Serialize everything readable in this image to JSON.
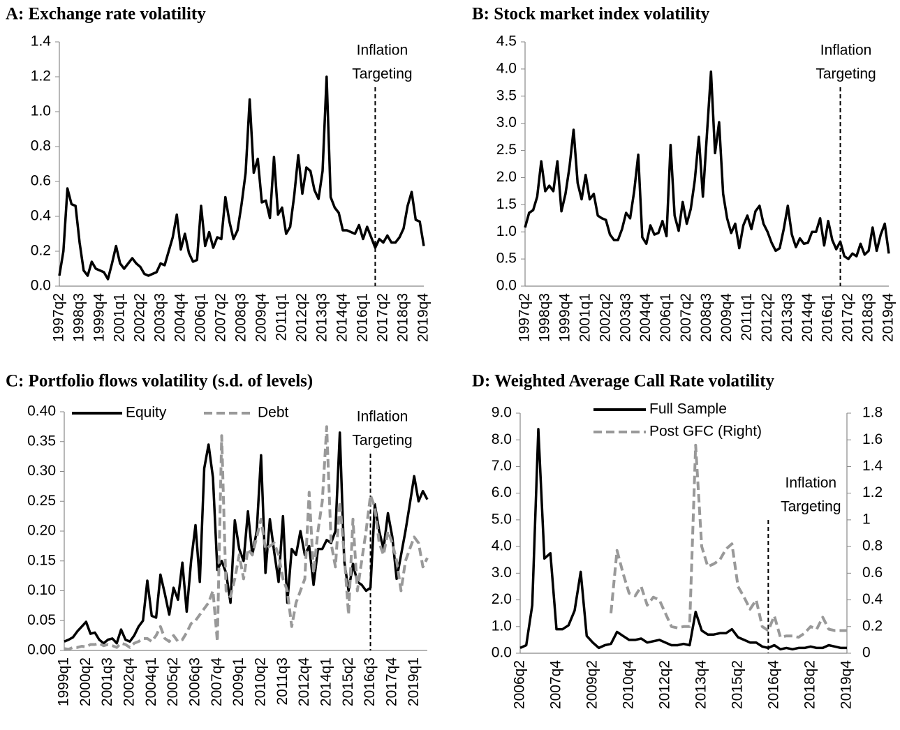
{
  "chart_data": [
    {
      "type": "line",
      "title": "A: Exchange rate volatility",
      "categories": [
        "1997q2",
        null,
        null,
        null,
        null,
        "1998q3",
        null,
        null,
        null,
        null,
        "1999q4",
        null,
        null,
        null,
        null,
        "2001q1",
        null,
        null,
        null,
        null,
        "2002q2",
        null,
        null,
        null,
        null,
        "2003q3",
        null,
        null,
        null,
        null,
        "2004q4",
        null,
        null,
        null,
        null,
        "2006q1",
        null,
        null,
        null,
        null,
        "2007q2",
        null,
        null,
        null,
        null,
        "2008q3",
        null,
        null,
        null,
        null,
        "2009q4",
        null,
        null,
        null,
        null,
        "2011q1",
        null,
        null,
        null,
        null,
        "2012q2",
        null,
        null,
        null,
        null,
        "2013q3",
        null,
        null,
        null,
        null,
        "2014q4",
        null,
        null,
        null,
        null,
        "2016q1",
        null,
        null,
        null,
        null,
        "2017q2",
        null,
        null,
        null,
        null,
        "2018q3",
        null,
        null,
        null,
        null,
        "2019q4"
      ],
      "values": [
        0.06,
        0.2,
        0.56,
        0.47,
        0.46,
        0.25,
        0.09,
        0.06,
        0.14,
        0.1,
        0.09,
        0.08,
        0.04,
        0.13,
        0.23,
        0.13,
        0.1,
        0.13,
        0.16,
        0.13,
        0.11,
        0.07,
        0.06,
        0.07,
        0.08,
        0.13,
        0.12,
        0.2,
        0.28,
        0.41,
        0.21,
        0.3,
        0.19,
        0.14,
        0.15,
        0.46,
        0.23,
        0.31,
        0.22,
        0.28,
        0.27,
        0.51,
        0.37,
        0.27,
        0.32,
        0.47,
        0.65,
        1.07,
        0.65,
        0.73,
        0.48,
        0.49,
        0.39,
        0.74,
        0.41,
        0.45,
        0.3,
        0.34,
        0.52,
        0.75,
        0.53,
        0.68,
        0.66,
        0.55,
        0.5,
        0.66,
        1.2,
        0.51,
        0.45,
        0.42,
        0.32,
        0.32,
        0.31,
        0.3,
        0.35,
        0.27,
        0.34,
        0.28,
        0.22,
        0.27,
        0.25,
        0.29,
        0.25,
        0.25,
        0.28,
        0.33,
        0.46,
        0.54,
        0.38,
        0.37,
        0.23
      ],
      "color": "#000000",
      "ylim": [
        0,
        1.4
      ],
      "yticks": [
        {
          "value": 0,
          "label": "0.0"
        },
        0.2,
        0.4,
        0.6,
        0.8,
        {
          "value": 1,
          "label": "1.0"
        },
        1.2,
        1.4
      ],
      "vline": {
        "category_index": 78,
        "text": [
          "Inflation",
          "Targeting"
        ]
      }
    },
    {
      "type": "line",
      "title": "B: Stock market index volatility",
      "categories": [
        "1997q2",
        null,
        null,
        null,
        null,
        "1998q3",
        null,
        null,
        null,
        null,
        "1999q4",
        null,
        null,
        null,
        null,
        "2001q1",
        null,
        null,
        null,
        null,
        "2002q2",
        null,
        null,
        null,
        null,
        "2003q3",
        null,
        null,
        null,
        null,
        "2004q4",
        null,
        null,
        null,
        null,
        "2006q1",
        null,
        null,
        null,
        null,
        "2007q2",
        null,
        null,
        null,
        null,
        "2008q3",
        null,
        null,
        null,
        null,
        "2009q4",
        null,
        null,
        null,
        null,
        "2011q1",
        null,
        null,
        null,
        null,
        "2012q2",
        null,
        null,
        null,
        null,
        "2013q3",
        null,
        null,
        null,
        null,
        "2014q4",
        null,
        null,
        null,
        null,
        "2016q1",
        null,
        null,
        null,
        null,
        "2017q2",
        null,
        null,
        null,
        null,
        "2018q3",
        null,
        null,
        null,
        null,
        "2019q4"
      ],
      "values": [
        1.08,
        1.35,
        1.4,
        1.65,
        2.3,
        1.75,
        1.85,
        1.75,
        2.3,
        1.38,
        1.7,
        2.2,
        2.88,
        1.9,
        1.6,
        2.05,
        1.6,
        1.7,
        1.3,
        1.25,
        1.22,
        0.95,
        0.85,
        0.85,
        1.05,
        1.35,
        1.25,
        1.75,
        2.42,
        0.9,
        0.78,
        1.12,
        0.95,
        0.98,
        1.2,
        0.92,
        2.6,
        1.3,
        1.02,
        1.55,
        1.15,
        1.42,
        1.95,
        2.75,
        1.65,
        2.8,
        3.95,
        2.45,
        3.02,
        1.7,
        1.25,
        0.98,
        1.15,
        0.7,
        1.12,
        1.3,
        1.05,
        1.38,
        1.48,
        1.15,
        1.0,
        0.8,
        0.65,
        0.7,
        1.05,
        1.48,
        0.95,
        0.72,
        0.88,
        0.78,
        0.8,
        1.0,
        1.0,
        1.25,
        0.75,
        1.2,
        0.85,
        0.68,
        0.82,
        0.55,
        0.5,
        0.6,
        0.55,
        0.78,
        0.58,
        0.65,
        1.08,
        0.65,
        0.95,
        1.15,
        0.6
      ],
      "color": "#000000",
      "ylim": [
        0,
        4.5
      ],
      "yticks": [
        {
          "value": 0,
          "label": "0.0"
        },
        0.5,
        {
          "value": 1,
          "label": "1.0"
        },
        1.5,
        {
          "value": 2,
          "label": "2.0"
        },
        2.5,
        {
          "value": 3,
          "label": "3.0"
        },
        3.5,
        {
          "value": 4,
          "label": "4.0"
        },
        4.5
      ],
      "vline": {
        "category_index": 78,
        "text": [
          "Inflation",
          "Targeting"
        ]
      }
    },
    {
      "type": "line",
      "title": "C: Portfolio flows volatility (s.d. of levels)",
      "categories": [
        "1999q1",
        null,
        null,
        null,
        null,
        "2000q2",
        null,
        null,
        null,
        null,
        "2001q3",
        null,
        null,
        null,
        null,
        "2002q4",
        null,
        null,
        null,
        null,
        "2004q1",
        null,
        null,
        null,
        null,
        "2005q2",
        null,
        null,
        null,
        null,
        "2006q3",
        null,
        null,
        null,
        null,
        "2007q4",
        null,
        null,
        null,
        null,
        "2009q1",
        null,
        null,
        null,
        null,
        "2010q2",
        null,
        null,
        null,
        null,
        "2011q3",
        null,
        null,
        null,
        null,
        "2012q4",
        null,
        null,
        null,
        null,
        "2014q1",
        null,
        null,
        null,
        null,
        "2015q2",
        null,
        null,
        null,
        null,
        "2016q3",
        null,
        null,
        null,
        null,
        "2017q4",
        null,
        null,
        null,
        null,
        "2019q1",
        null,
        null,
        null
      ],
      "series": [
        {
          "name": "Equity",
          "color": "#000000",
          "dash": false,
          "values": [
            0.015,
            0.018,
            0.022,
            0.032,
            0.04,
            0.048,
            0.028,
            0.03,
            0.018,
            0.012,
            0.018,
            0.02,
            0.012,
            0.035,
            0.018,
            0.015,
            0.025,
            0.04,
            0.05,
            0.117,
            0.058,
            0.055,
            0.127,
            0.095,
            0.06,
            0.105,
            0.085,
            0.147,
            0.065,
            0.15,
            0.21,
            0.115,
            0.305,
            0.345,
            0.29,
            0.135,
            0.15,
            0.13,
            0.08,
            0.218,
            0.17,
            0.15,
            0.233,
            0.16,
            0.2,
            0.327,
            0.13,
            0.22,
            0.165,
            0.115,
            0.225,
            0.08,
            0.17,
            0.16,
            0.2,
            0.16,
            0.175,
            0.11,
            0.17,
            0.17,
            0.185,
            0.18,
            0.2,
            0.365,
            0.15,
            0.1,
            0.145,
            0.115,
            0.11,
            0.1,
            0.105,
            0.245,
            0.2,
            0.17,
            0.23,
            0.19,
            0.12,
            0.16,
            0.2,
            0.245,
            0.292,
            0.25,
            0.267,
            0.253
          ]
        },
        {
          "name": "Debt",
          "color": "#999999",
          "dash": true,
          "values": [
            0.003,
            0.002,
            0.005,
            0.005,
            0.007,
            0.006,
            0.01,
            0.01,
            0.012,
            0.008,
            0.01,
            0.008,
            0.005,
            0.012,
            0.01,
            0.005,
            0.012,
            0.015,
            0.02,
            0.02,
            0.015,
            0.025,
            0.04,
            0.02,
            0.015,
            0.025,
            0.015,
            0.018,
            0.03,
            0.045,
            0.05,
            0.06,
            0.07,
            0.08,
            0.1,
            0.015,
            0.36,
            0.1,
            0.09,
            0.12,
            0.16,
            0.12,
            0.17,
            0.16,
            0.19,
            0.22,
            0.17,
            0.175,
            0.18,
            0.16,
            0.12,
            0.1,
            0.04,
            0.08,
            0.1,
            0.12,
            0.265,
            0.13,
            0.2,
            0.25,
            0.375,
            0.18,
            0.14,
            0.25,
            0.16,
            0.06,
            0.22,
            0.1,
            0.15,
            0.2,
            0.26,
            0.24,
            0.18,
            0.16,
            0.2,
            0.18,
            0.15,
            0.1,
            0.15,
            0.17,
            0.19,
            0.18,
            0.14,
            0.155
          ]
        }
      ],
      "ylim": [
        0,
        0.4
      ],
      "yticks": [
        {
          "value": 0,
          "label": "0.00"
        },
        0.05,
        {
          "value": 0.1,
          "label": "0.10"
        },
        0.15,
        {
          "value": 0.2,
          "label": "0.20"
        },
        0.25,
        {
          "value": 0.3,
          "label": "0.30"
        },
        0.35,
        {
          "value": 0.4,
          "label": "0.40"
        }
      ],
      "legend": "top",
      "vline": {
        "category_index": 70,
        "text": [
          "Inflation",
          "Targeting"
        ]
      }
    },
    {
      "type": "line",
      "title": "D: Weighted Average Call Rate volatility",
      "categories": [
        "2006q2",
        null,
        null,
        null,
        null,
        null,
        "2007q4",
        null,
        null,
        null,
        null,
        null,
        "2009q2",
        null,
        null,
        null,
        null,
        null,
        "2010q4",
        null,
        null,
        null,
        null,
        null,
        "2012q2",
        null,
        null,
        null,
        null,
        null,
        "2013q4",
        null,
        null,
        null,
        null,
        null,
        "2015q2",
        null,
        null,
        null,
        null,
        null,
        "2016q4",
        null,
        null,
        null,
        null,
        null,
        "2018q2",
        null,
        null,
        null,
        null,
        null,
        "2019q4"
      ],
      "series": [
        {
          "name": "Full Sample",
          "color": "#000000",
          "dash": false,
          "axis": "y",
          "values": [
            0.2,
            0.3,
            1.8,
            8.4,
            3.55,
            3.75,
            0.9,
            0.9,
            1.05,
            1.6,
            3.05,
            0.65,
            0.4,
            0.2,
            0.3,
            0.35,
            0.8,
            0.65,
            0.5,
            0.5,
            0.55,
            0.4,
            0.45,
            0.5,
            0.4,
            0.3,
            0.3,
            0.35,
            0.3,
            1.55,
            0.85,
            0.7,
            0.7,
            0.75,
            0.75,
            0.9,
            0.6,
            0.5,
            0.4,
            0.4,
            0.25,
            0.2,
            0.3,
            0.15,
            0.2,
            0.15,
            0.2,
            0.2,
            0.25,
            0.2,
            0.2,
            0.3,
            0.25,
            0.2,
            0.2
          ]
        },
        {
          "name": "Post GFC (Right)",
          "color": "#999999",
          "dash": true,
          "axis": "y2",
          "values": [
            null,
            null,
            null,
            null,
            null,
            null,
            null,
            null,
            null,
            null,
            null,
            null,
            null,
            null,
            null,
            0.3,
            0.77,
            0.6,
            0.45,
            0.43,
            0.5,
            0.36,
            0.42,
            0.4,
            0.3,
            0.2,
            0.19,
            0.2,
            0.2,
            1.56,
            0.8,
            0.65,
            0.67,
            0.7,
            0.78,
            0.82,
            0.5,
            0.42,
            0.33,
            0.4,
            0.2,
            0.17,
            0.28,
            0.12,
            0.13,
            0.13,
            0.12,
            0.15,
            0.2,
            0.18,
            0.27,
            0.18,
            0.17,
            0.17,
            0.17
          ]
        }
      ],
      "ylim": [
        0,
        9
      ],
      "yticks": [
        {
          "value": 0,
          "label": "0.0"
        },
        {
          "value": 1,
          "label": "1.0"
        },
        {
          "value": 2,
          "label": "2.0"
        },
        {
          "value": 3,
          "label": "3.0"
        },
        {
          "value": 4,
          "label": "4.0"
        },
        {
          "value": 5,
          "label": "5.0"
        },
        {
          "value": 6,
          "label": "6.0"
        },
        {
          "value": 7,
          "label": "7.0"
        },
        {
          "value": 8,
          "label": "8.0"
        },
        {
          "value": 9,
          "label": "9.0"
        }
      ],
      "y2lim": [
        0,
        1.8
      ],
      "y2ticks": [
        0,
        0.2,
        0.4,
        0.6,
        0.8,
        1,
        1.2,
        1.4,
        1.6,
        1.8
      ],
      "legend": "top",
      "vline": {
        "category_index": 41,
        "text": [
          "Inflation",
          "Targeting"
        ]
      }
    }
  ]
}
